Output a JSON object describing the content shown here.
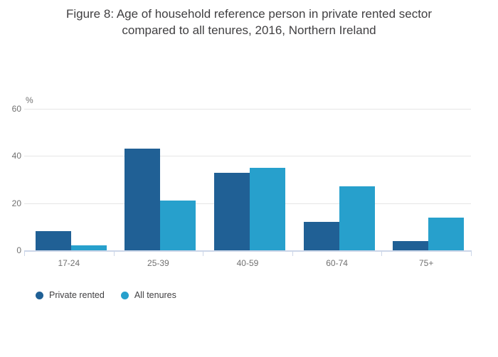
{
  "title": {
    "line1": "Figure 8: Age of household reference person in private rented sector",
    "line2": "compared to all tenures, 2016, Northern Ireland"
  },
  "y_axis": {
    "unit_label": "%",
    "ticks": [
      0,
      20,
      40,
      60
    ]
  },
  "colors": {
    "private_rented": "#206095",
    "all_tenures": "#27a0cc",
    "gridline": "#e6e6e6",
    "axis_line": "#ccd6e8",
    "title_text": "#414042",
    "tick_text": "#707070"
  },
  "chart_data": {
    "type": "bar",
    "title": "Figure 8: Age of household reference person in private rented sector compared to all tenures, 2016, Northern Ireland",
    "categories": [
      "17-24",
      "25-39",
      "40-59",
      "60-74",
      "75+"
    ],
    "series": [
      {
        "name": "Private rented",
        "color": "#206095",
        "values": [
          8,
          43,
          33,
          12,
          4
        ]
      },
      {
        "name": "All tenures",
        "color": "#27a0cc",
        "values": [
          2,
          21,
          35,
          27,
          14
        ]
      }
    ],
    "xlabel": "",
    "ylabel": "%",
    "ylim": [
      0,
      60
    ],
    "yticks": [
      0,
      20,
      40,
      60
    ],
    "grid": true,
    "legend_position": "bottom"
  }
}
